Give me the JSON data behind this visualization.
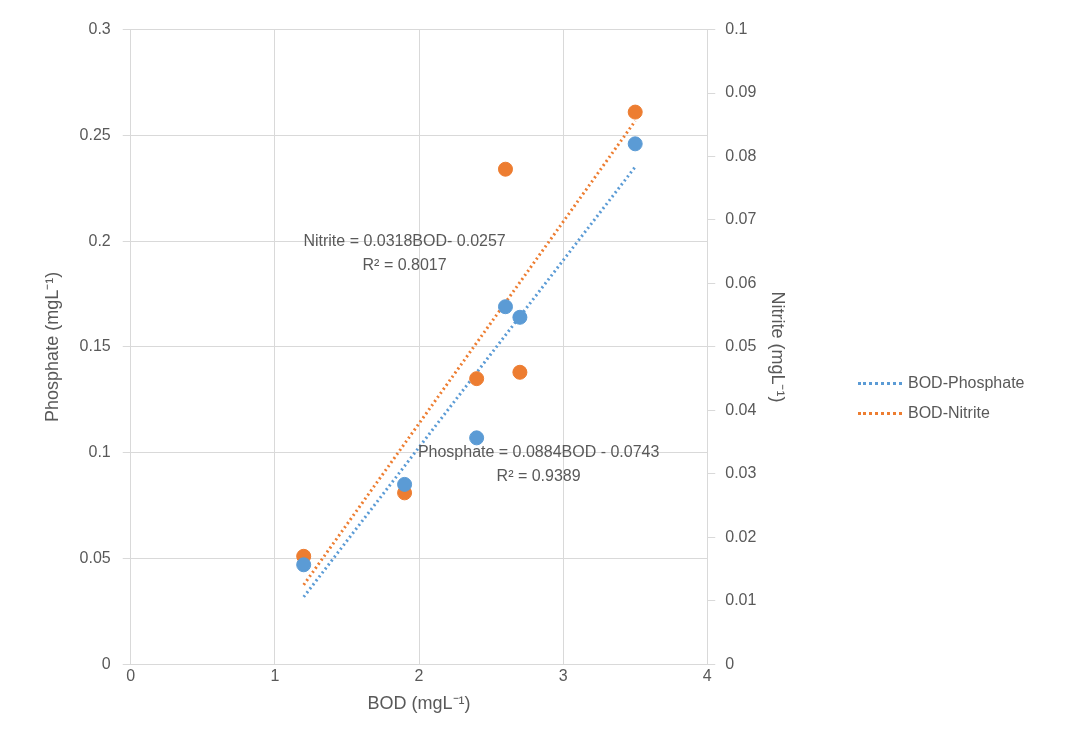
{
  "chart_data": {
    "type": "scatter",
    "xlabel": "BOD (mgL⁻¹)",
    "ylabel": "Phosphate (mgL⁻¹)",
    "y2label": "Nitrite (mgL⁻¹)",
    "xlim": [
      0,
      4
    ],
    "xticks": [
      0,
      1,
      2,
      3,
      4
    ],
    "ylim": [
      0,
      0.3
    ],
    "yticks": [
      0,
      0.05,
      0.1,
      0.15,
      0.2,
      0.25,
      0.3
    ],
    "y2lim": [
      0,
      0.1
    ],
    "y2ticks": [
      0,
      0.01,
      0.02,
      0.03,
      0.04,
      0.05,
      0.06,
      0.07,
      0.08,
      0.09,
      0.1
    ],
    "grid": true,
    "legend": "right",
    "marker": "circle",
    "annotations": [
      "Nitrite = 0.0318BOD- 0.0257\nR² = 0.8017",
      "Phosphate = 0.0884BOD - 0.0743\nR² = 0.9389"
    ],
    "series": [
      {
        "color": "#5b9bd5",
        "x": [
          1.2,
          1.9,
          2.4,
          2.6,
          2.7,
          3.5
        ],
        "values": [
          0.047,
          0.085,
          0.107,
          0.169,
          0.164,
          0.246
        ]
      },
      {
        "color": "#ed7d31",
        "axis": "y2",
        "x": [
          1.2,
          1.9,
          2.4,
          2.6,
          2.7,
          3.5
        ],
        "values": [
          0.017,
          0.027,
          0.045,
          0.078,
          0.046,
          0.087
        ]
      },
      {
        "type": "line",
        "name": "BOD-Phosphate",
        "color": "#5b9bd5",
        "marker": "none",
        "line_style": "dotted",
        "x": [
          1.2,
          3.5
        ],
        "values": [
          0.0318,
          0.2351
        ]
      },
      {
        "type": "line",
        "name": "BOD-Nitrite",
        "color": "#ed7d31",
        "axis": "y2",
        "marker": "none",
        "line_style": "dotted",
        "x": [
          1.2,
          3.5
        ],
        "values": [
          0.0125,
          0.0856
        ]
      }
    ]
  }
}
